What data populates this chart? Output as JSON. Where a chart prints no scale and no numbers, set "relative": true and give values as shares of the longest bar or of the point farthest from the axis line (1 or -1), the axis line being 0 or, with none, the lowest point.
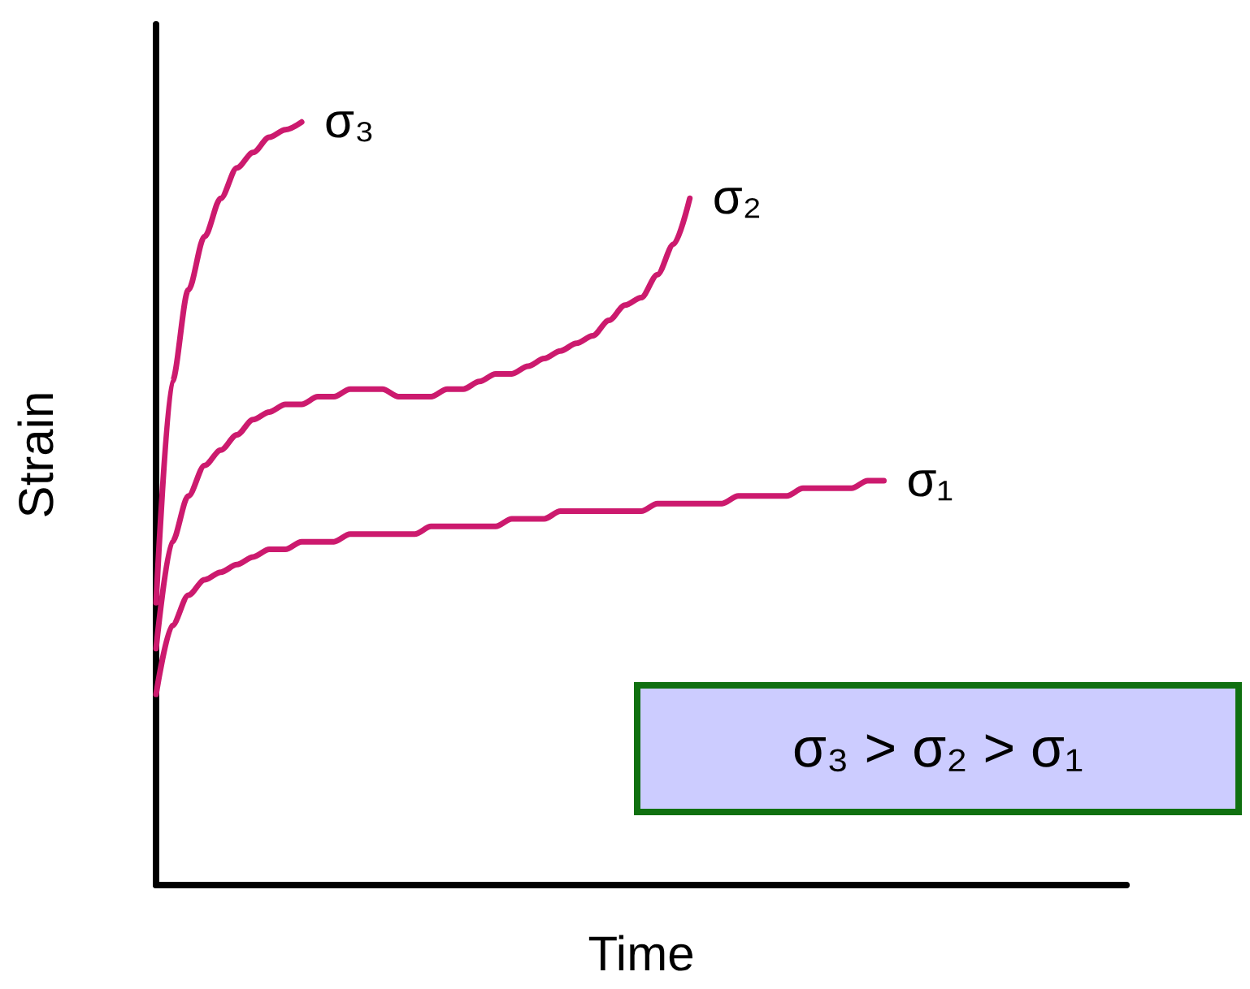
{
  "chart_data": {
    "type": "line",
    "relative": true,
    "xlabel": "Time",
    "ylabel": "Strain",
    "grid": false,
    "legend": false,
    "marker": "none",
    "line_style": "solid",
    "categories": [
      null,
      null,
      null,
      null,
      null,
      null,
      null,
      null,
      null,
      null,
      null,
      null,
      null,
      null,
      null,
      null,
      null,
      null,
      null,
      null,
      null,
      null,
      null,
      null,
      null,
      null,
      null,
      null,
      null,
      null,
      null,
      null,
      null,
      null,
      null,
      null,
      null,
      null,
      null,
      null,
      null,
      null,
      null,
      null,
      null,
      null,
      null,
      null,
      null,
      null,
      null,
      null,
      null,
      null,
      null,
      null,
      null,
      null,
      null,
      null,
      null
    ],
    "series": [
      {
        "name": "σ₃",
        "color": "#cc1a6e",
        "values": [
          0.37,
          0.66,
          0.78,
          0.85,
          0.9,
          0.94,
          0.96,
          0.98,
          0.99,
          1.0,
          null,
          null,
          null,
          null,
          null,
          null,
          null,
          null,
          null,
          null,
          null,
          null,
          null,
          null,
          null,
          null,
          null,
          null,
          null,
          null,
          null,
          null,
          null,
          null,
          null,
          null,
          null,
          null,
          null,
          null,
          null,
          null,
          null,
          null,
          null,
          null,
          null,
          null,
          null,
          null,
          null,
          null,
          null,
          null,
          null,
          null,
          null,
          null,
          null,
          null,
          null
        ]
      },
      {
        "name": "σ₂",
        "color": "#cc1a6e",
        "values": [
          0.31,
          0.45,
          0.51,
          0.55,
          0.57,
          0.59,
          0.61,
          0.62,
          0.63,
          0.63,
          0.64,
          0.64,
          0.65,
          0.65,
          0.65,
          0.64,
          0.64,
          0.64,
          0.65,
          0.65,
          0.66,
          0.67,
          0.67,
          0.68,
          0.69,
          0.7,
          0.71,
          0.72,
          0.74,
          0.76,
          0.77,
          0.8,
          0.84,
          0.9,
          null,
          null,
          null,
          null,
          null,
          null,
          null,
          null,
          null,
          null,
          null,
          null,
          null,
          null,
          null,
          null,
          null,
          null,
          null,
          null,
          null,
          null,
          null,
          null,
          null,
          null,
          null
        ]
      },
      {
        "name": "σ₁",
        "color": "#cc1a6e",
        "values": [
          0.25,
          0.34,
          0.38,
          0.4,
          0.41,
          0.42,
          0.43,
          0.44,
          0.44,
          0.45,
          0.45,
          0.45,
          0.46,
          0.46,
          0.46,
          0.46,
          0.46,
          0.47,
          0.47,
          0.47,
          0.47,
          0.47,
          0.48,
          0.48,
          0.48,
          0.49,
          0.49,
          0.49,
          0.49,
          0.49,
          0.49,
          0.5,
          0.5,
          0.5,
          0.5,
          0.5,
          0.51,
          0.51,
          0.51,
          0.51,
          0.52,
          0.52,
          0.52,
          0.52,
          0.53,
          0.53,
          null,
          null,
          null,
          null,
          null,
          null,
          null,
          null,
          null,
          null,
          null,
          null,
          null,
          null,
          null
        ]
      }
    ],
    "annotations": [
      "σ₃ > σ₂ > σ₁"
    ]
  }
}
